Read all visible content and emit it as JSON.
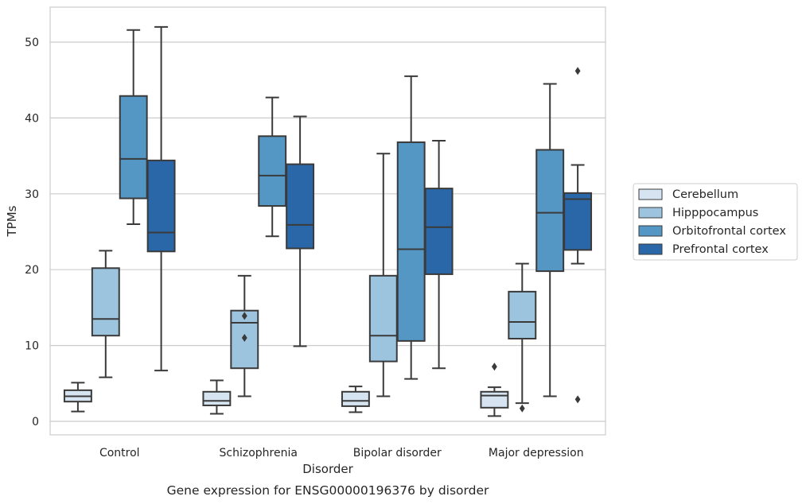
{
  "chart_data": {
    "type": "box",
    "caption": "Gene expression for ENSG00000196376 by disorder",
    "xlabel": "Disorder",
    "ylabel": "TPMs",
    "ylim": [
      -1.8,
      54.5
    ],
    "yticks": [
      0,
      10,
      20,
      30,
      40,
      50
    ],
    "grid": "horizontal",
    "legend_position": "right",
    "categories": [
      "Control",
      "Schizophrenia",
      "Bipolar disorder",
      "Major depression"
    ],
    "series": [
      {
        "name": "Cerebellum",
        "color": "#d6e4f1",
        "boxes": [
          {
            "whisker_low": 1.3,
            "q1": 2.6,
            "median": 3.3,
            "q3": 4.1,
            "whisker_high": 5.1,
            "outliers": []
          },
          {
            "whisker_low": 1.0,
            "q1": 2.1,
            "median": 2.7,
            "q3": 3.9,
            "whisker_high": 5.4,
            "outliers": []
          },
          {
            "whisker_low": 1.2,
            "q1": 2.0,
            "median": 2.7,
            "q3": 3.9,
            "whisker_high": 4.6,
            "outliers": []
          },
          {
            "whisker_low": 0.7,
            "q1": 1.8,
            "median": 3.4,
            "q3": 3.9,
            "whisker_high": 4.5,
            "outliers": [
              7.2
            ]
          }
        ]
      },
      {
        "name": "Hipppocampus",
        "color": "#9dc4de",
        "boxes": [
          {
            "whisker_low": 5.8,
            "q1": 11.3,
            "median": 13.5,
            "q3": 20.2,
            "whisker_high": 22.5,
            "outliers": []
          },
          {
            "whisker_low": 3.3,
            "q1": 7.0,
            "median": 13.0,
            "q3": 14.6,
            "whisker_high": 19.2,
            "outliers": [
              13.9,
              11.0
            ]
          },
          {
            "whisker_low": 3.3,
            "q1": 7.9,
            "median": 11.3,
            "q3": 19.2,
            "whisker_high": 35.3,
            "outliers": []
          },
          {
            "whisker_low": 2.4,
            "q1": 10.9,
            "median": 13.1,
            "q3": 17.1,
            "whisker_high": 20.8,
            "outliers": [
              1.7
            ]
          }
        ]
      },
      {
        "name": "Orbitofrontal cortex",
        "color": "#5497c5",
        "boxes": [
          {
            "whisker_low": 26.0,
            "q1": 29.4,
            "median": 34.6,
            "q3": 42.9,
            "whisker_high": 51.6,
            "outliers": []
          },
          {
            "whisker_low": 24.4,
            "q1": 28.4,
            "median": 32.4,
            "q3": 37.6,
            "whisker_high": 42.7,
            "outliers": []
          },
          {
            "whisker_low": 5.6,
            "q1": 10.6,
            "median": 22.7,
            "q3": 36.8,
            "whisker_high": 45.5,
            "outliers": []
          },
          {
            "whisker_low": 3.3,
            "q1": 19.8,
            "median": 27.5,
            "q3": 35.8,
            "whisker_high": 44.5,
            "outliers": []
          }
        ]
      },
      {
        "name": "Prefrontal cortex",
        "color": "#2a67a8",
        "boxes": [
          {
            "whisker_low": 6.7,
            "q1": 22.4,
            "median": 24.9,
            "q3": 34.4,
            "whisker_high": 52.0,
            "outliers": []
          },
          {
            "whisker_low": 9.9,
            "q1": 22.8,
            "median": 25.9,
            "q3": 33.9,
            "whisker_high": 40.2,
            "outliers": []
          },
          {
            "whisker_low": 7.0,
            "q1": 19.4,
            "median": 25.6,
            "q3": 30.7,
            "whisker_high": 37.0,
            "outliers": []
          },
          {
            "whisker_low": 20.8,
            "q1": 22.6,
            "median": 29.3,
            "q3": 30.1,
            "whisker_high": 33.8,
            "outliers": [
              46.2,
              2.9
            ]
          }
        ]
      }
    ]
  }
}
